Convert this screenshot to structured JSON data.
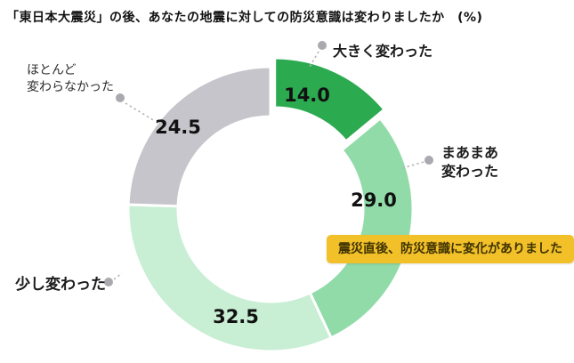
{
  "title": "「東日本大震災」の後、あなたの地震に対しての防災意識は変わりましたか　(%)",
  "chart_data": {
    "type": "pie",
    "subtype": "donut",
    "unit": "%",
    "direction": "clockwise",
    "start_angle_deg": 0,
    "donut_hole_ratio": 0.65,
    "legend_position": "none",
    "categories": [
      "大きく変わった",
      "まあまあ変わった",
      "少し変わった",
      "ほとんど変わらなかった"
    ],
    "values": [
      14.0,
      29.0,
      32.5,
      24.5
    ],
    "segments": [
      {
        "label": "大きく変わった",
        "label_lines": [
          "大きく変わった"
        ],
        "value": 14.0,
        "value_label": "14.0",
        "color": "#2caa50",
        "exploded": true
      },
      {
        "label": "まあまあ変わった",
        "label_lines": [
          "まあまあ",
          "変わった"
        ],
        "value": 29.0,
        "value_label": "29.0",
        "color": "#90dba7",
        "exploded": false
      },
      {
        "label": "少し変わった",
        "label_lines": [
          "少し変わった"
        ],
        "value": 32.5,
        "value_label": "32.5",
        "color": "#c8eed4",
        "exploded": false
      },
      {
        "label": "ほとんど変わらなかった",
        "label_lines": [
          "ほとんど",
          "変わらなかった"
        ],
        "value": 24.5,
        "value_label": "24.5",
        "color": "#c6c5cb",
        "exploded": false
      }
    ]
  },
  "callout": {
    "text": "震災直後、防災意識に変化がありました",
    "background": "#f2c029",
    "text_color": "#3e3200"
  },
  "colors": {
    "leader_dot": "#a9a9af",
    "leader_line": "#b4b4ba",
    "slice_gap_stroke": "#ffffff",
    "value_text": "#111111"
  }
}
